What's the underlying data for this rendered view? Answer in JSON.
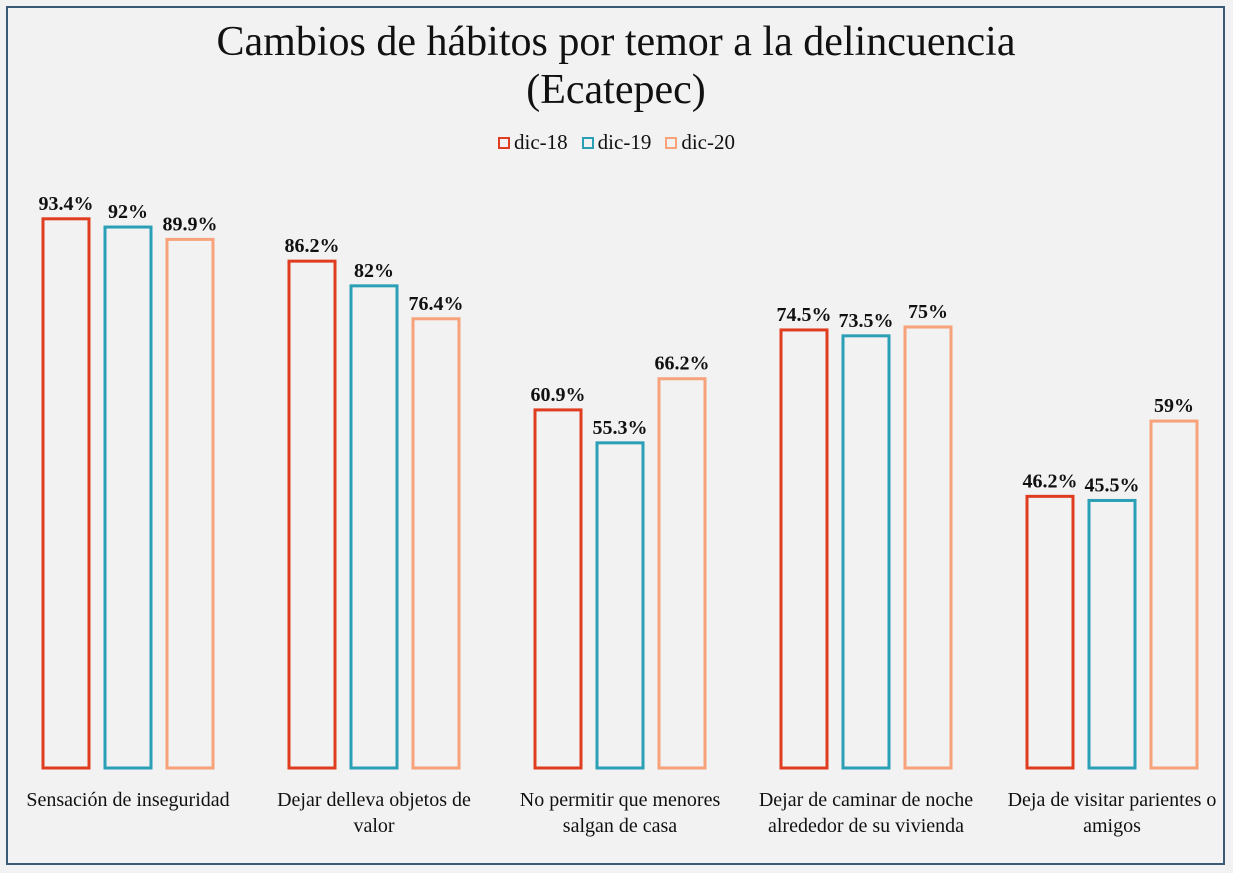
{
  "chart_data": {
    "type": "bar",
    "title": "Cambios de hábitos por temor a la delincuencia (Ecatepec)",
    "categories": [
      "Sensación de inseguridad",
      "Dejar delleva objetos de valor",
      "No permitir que menores salgan de casa",
      "Dejar de caminar de noche alrededor de su vivienda",
      "Deja de visitar parientes o amigos"
    ],
    "series": [
      {
        "name": "dic-18",
        "color": "#e03c1f",
        "values": [
          93.4,
          86.2,
          60.9,
          74.5,
          46.2
        ],
        "value_labels": [
          "93.4%",
          "86.2%",
          "60.9%",
          "74.5%",
          "46.2%"
        ]
      },
      {
        "name": "dic-19",
        "color": "#2a9fb5",
        "values": [
          92,
          82,
          55.3,
          73.5,
          45.5
        ],
        "value_labels": [
          "92%",
          "82%",
          "55.3%",
          "73.5%",
          "45.5%"
        ]
      },
      {
        "name": "dic-20",
        "color": "#f7a27a",
        "values": [
          89.9,
          76.4,
          66.2,
          75,
          59
        ],
        "value_labels": [
          "89.9%",
          "76.4%",
          "66.2%",
          "75%",
          "59%"
        ]
      }
    ],
    "ylim": [
      0,
      100
    ],
    "legend": "top"
  }
}
